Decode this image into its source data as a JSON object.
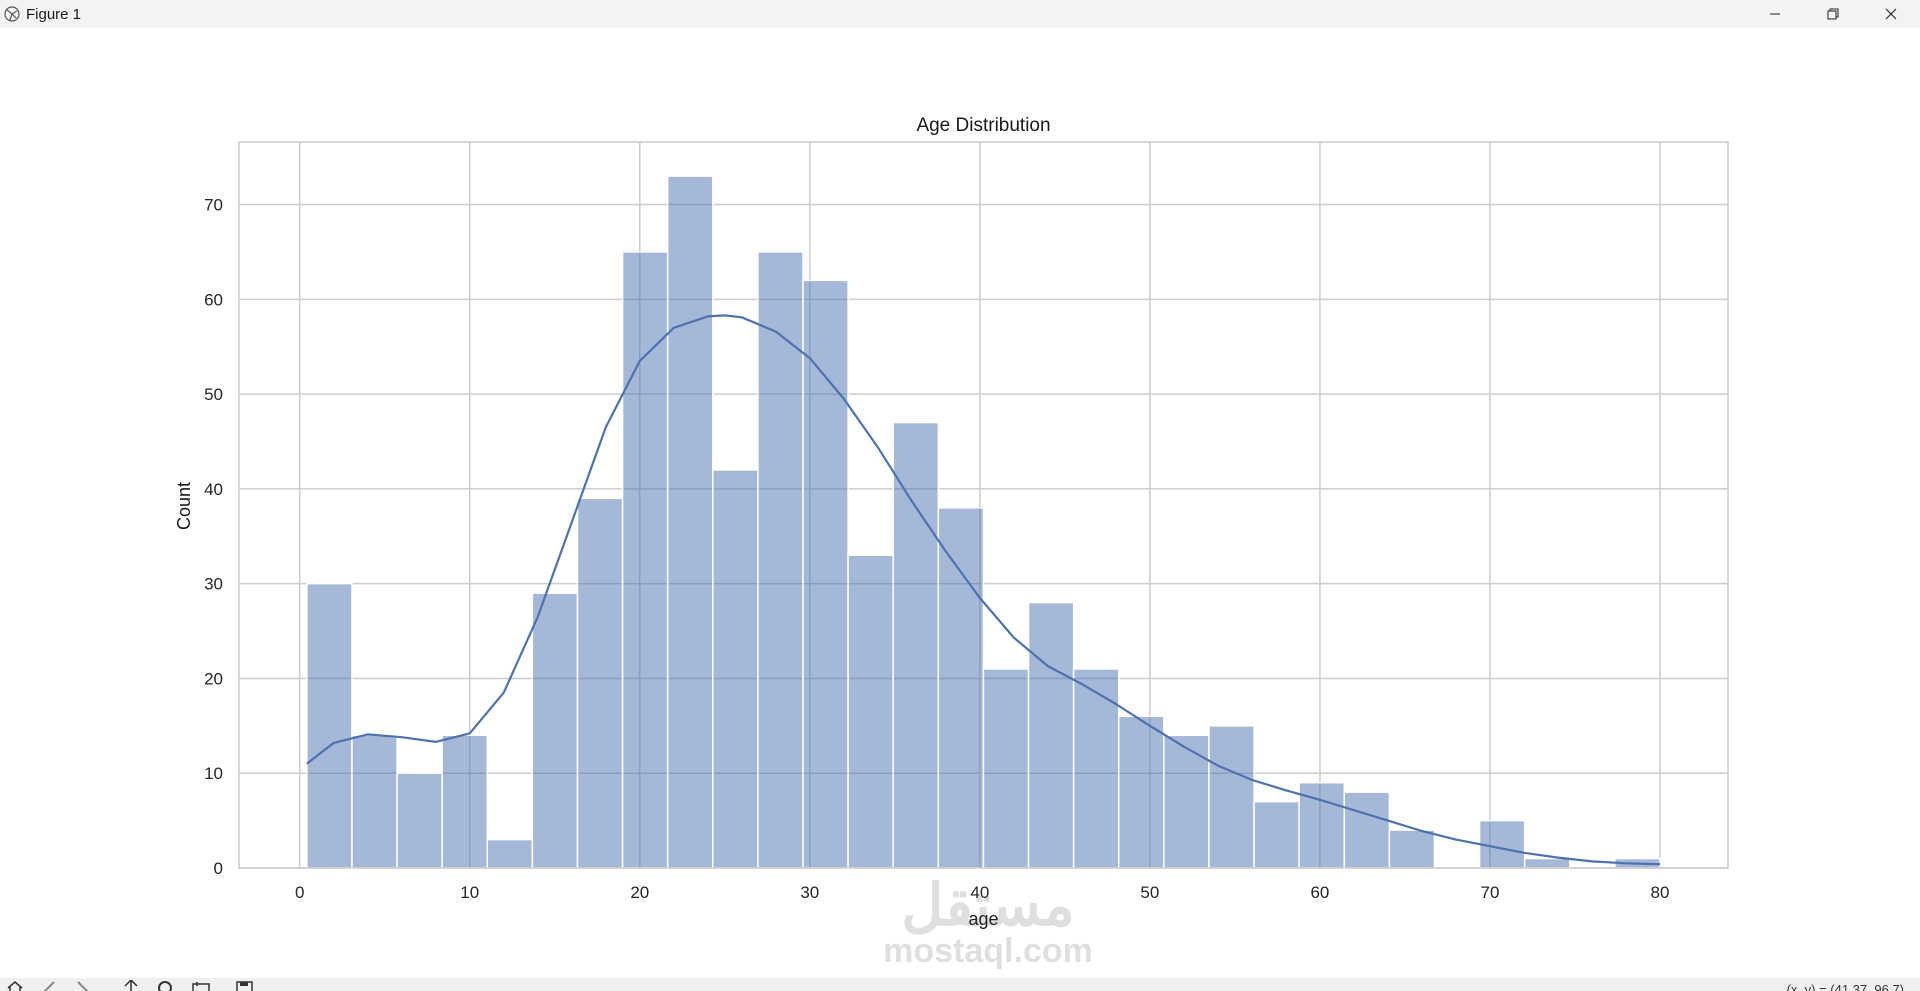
{
  "window": {
    "title": "Figure 1",
    "icon": "matplotlib-icon",
    "controls": [
      "minimize-icon",
      "restore-icon",
      "close-icon"
    ]
  },
  "toolbar": {
    "icons": [
      "home-icon",
      "back-icon",
      "forward-icon",
      "pan-icon",
      "zoom-icon",
      "configure-icon",
      "save-icon"
    ],
    "coordinate_readout": "(x, y) = (41.37, 96.7)"
  },
  "watermark": {
    "arabic": "مستقل",
    "latin": "mostaql.com"
  },
  "chart_data": {
    "type": "bar",
    "title": "Age Distribution",
    "xlabel": "age",
    "ylabel": "Count",
    "xlim": [
      -3.57,
      84.0
    ],
    "ylim": [
      0,
      76.6
    ],
    "xticks": [
      0,
      10,
      20,
      30,
      40,
      50,
      60,
      70,
      80
    ],
    "yticks": [
      0,
      10,
      20,
      30,
      40,
      50,
      60,
      70
    ],
    "grid": true,
    "legend": "none",
    "bar_color": "#4c72b0",
    "bar_alpha": 0.5,
    "kde_color": "#4c72b0",
    "bins": {
      "start": 0.42,
      "width": 2.6527,
      "counts": [
        30,
        14,
        10,
        14,
        3,
        29,
        39,
        65,
        73,
        42,
        65,
        62,
        33,
        47,
        38,
        21,
        28,
        21,
        16,
        14,
        15,
        7,
        9,
        8,
        4,
        0,
        5,
        1,
        0,
        1
      ]
    },
    "kde": {
      "x": [
        0.42,
        2,
        4,
        6,
        8,
        10,
        12,
        14,
        16,
        18,
        20,
        22,
        24,
        25,
        26,
        28,
        30,
        32,
        34,
        36,
        38,
        40,
        42,
        44,
        46,
        48,
        50,
        52,
        54,
        56,
        58,
        60,
        62,
        64,
        66,
        68,
        70,
        72,
        74,
        76,
        78,
        80
      ],
      "y": [
        11,
        13.2,
        14.1,
        13.8,
        13.3,
        14.2,
        18.5,
        26.5,
        36.5,
        46.5,
        53.5,
        57.0,
        58.2,
        58.3,
        58.1,
        56.6,
        53.8,
        49.5,
        44.4,
        38.7,
        33.4,
        28.5,
        24.3,
        21.3,
        19.4,
        17.3,
        15.0,
        12.8,
        10.8,
        9.3,
        8.2,
        7.2,
        6.1,
        5.0,
        3.9,
        3.0,
        2.3,
        1.6,
        1.1,
        0.7,
        0.5,
        0.4
      ]
    }
  }
}
